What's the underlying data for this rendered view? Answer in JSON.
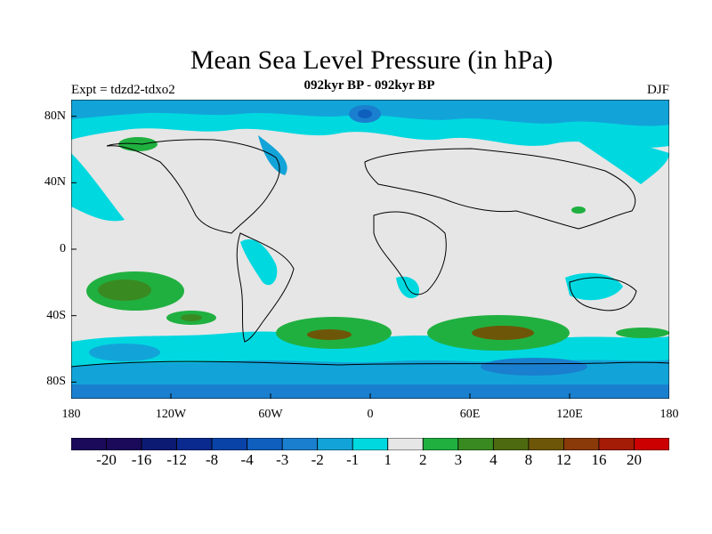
{
  "title": "Mean Sea Level Pressure (in hPa)",
  "subtitle": "092kyr BP - 092kyr BP",
  "expt_label": "Expt = tdzd2-tdxo2",
  "season": "DJF",
  "map": {
    "lon_range": [
      -180,
      180
    ],
    "lat_range": [
      -90,
      90
    ],
    "x_ticks": [
      "180",
      "120W",
      "60W",
      "0",
      "60E",
      "120E",
      "180"
    ],
    "y_ticks": [
      "80N",
      "40N",
      "0",
      "40S",
      "80S"
    ],
    "background_color": "#e6e6e6"
  },
  "colorbar": {
    "labels": [
      "-20",
      "-16",
      "-12",
      "-8",
      "-4",
      "-3",
      "-2",
      "-1",
      "1",
      "2",
      "3",
      "4",
      "8",
      "12",
      "16",
      "20"
    ],
    "colors": [
      "#1b0a5a",
      "#0c1a73",
      "#0a2a8f",
      "#0a43a8",
      "#0f5fbf",
      "#1a7fcf",
      "#12a4d8",
      "#00d8e0",
      "#e6e6e6",
      "#20b040",
      "#3a8a22",
      "#4e6a10",
      "#6e5608",
      "#8a3a08",
      "#a51c06",
      "#cc0000"
    ]
  }
}
